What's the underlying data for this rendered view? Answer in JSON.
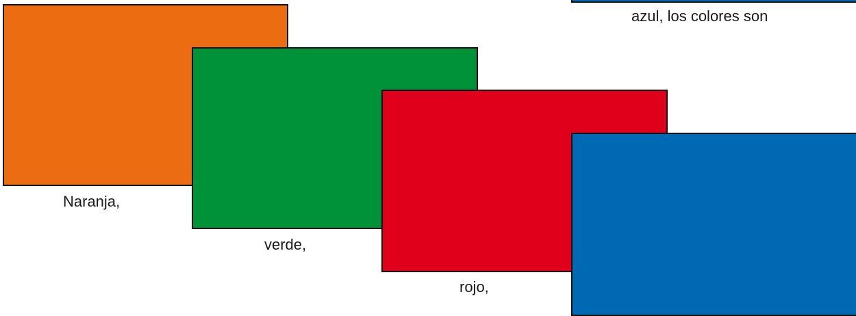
{
  "cards": {
    "orange": {
      "label": "Naranja,",
      "color": "#EC6C12"
    },
    "green": {
      "label": "verde,",
      "color": "#009239"
    },
    "red": {
      "label": "rojo,",
      "color": "#E0001B"
    },
    "blue": {
      "color": "#0069B3"
    },
    "top_blue": {
      "label": "azul, los colores son",
      "color": "#0069B3"
    }
  }
}
